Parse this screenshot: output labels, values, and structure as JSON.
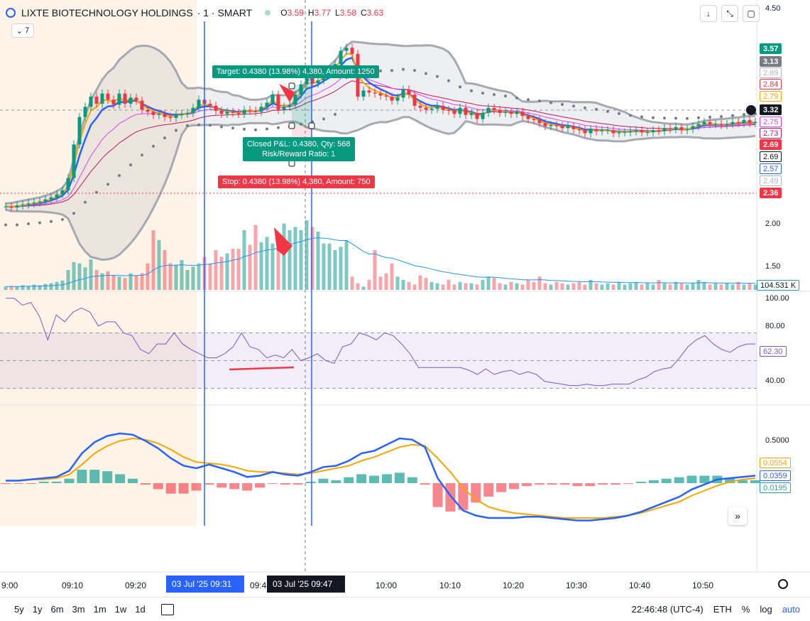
{
  "header": {
    "symbol": "LIXTE BIOTECHNOLOGY HOLDINGS",
    "interval": "· 1 · SMART",
    "o_label": "O",
    "o_value": "3.59",
    "h_label": "H",
    "h_value": "3.77",
    "l_label": "L",
    "l_value": "3.58",
    "c_label": "C",
    "c_value": "3.63",
    "indicators_count": "7"
  },
  "price_axis": {
    "labels": [
      "4.50",
      "2.00",
      "1.50"
    ],
    "tags": [
      {
        "text": "3.57",
        "bg": "#089981",
        "fg": "#ffffff"
      },
      {
        "text": "3.13",
        "bg": "#787b86",
        "fg": "#ffffff"
      },
      {
        "text": "2.89",
        "bg": "#ffffff",
        "fg": "#b2b5be"
      },
      {
        "text": "2.84",
        "bg": "#ffffff",
        "fg": "#f23645"
      },
      {
        "text": "2.79",
        "bg": "#ffffff",
        "fg": "#f7a600"
      },
      {
        "text": "3.32",
        "bg": "#131722",
        "fg": "#ffffff"
      },
      {
        "text": "2.75",
        "bg": "#ffffff",
        "fg": "#e040fb"
      },
      {
        "text": "2.73",
        "bg": "#ffffff",
        "fg": "#c2185b"
      },
      {
        "text": "2.69",
        "bg": "#f23645",
        "fg": "#ffffff"
      },
      {
        "text": "2.69",
        "bg": "#ffffff",
        "fg": "#131722"
      },
      {
        "text": "2.57",
        "bg": "#ffffff",
        "fg": "#2962ff"
      },
      {
        "text": "2.49",
        "bg": "#ffffff",
        "fg": "#b2b5be"
      },
      {
        "text": "2.36",
        "bg": "#f23645",
        "fg": "#ffffff"
      }
    ],
    "volume_tag": "104.531 K"
  },
  "rsi_axis": {
    "labels": [
      "100.00",
      "80.00",
      "40.00"
    ],
    "tag": "62.30"
  },
  "macd_axis": {
    "labels": [
      "0.5000"
    ],
    "tags": [
      "0.0554",
      "0.0359",
      "0.0195"
    ]
  },
  "time_axis": {
    "labels": [
      "9:00",
      "09:10",
      "09:20",
      "09:4",
      "10:00",
      "10:10",
      "10:20",
      "10:30",
      "10:40",
      "10:50"
    ],
    "highlight_1": "03 Jul '25   09:31",
    "highlight_2": "03 Jul '25   09:47"
  },
  "position_tool": {
    "target": "Target: 0.4380 (13.98%) 4,380, Amount: 1250",
    "closed_line1": "Closed P&L: 0.4380, Qty: 568",
    "closed_line2": "Risk/Reward Ratio: 1",
    "stop": "Stop: 0.4380 (13.98%) 4,380, Amount: 750"
  },
  "bottom_bar": {
    "ranges": [
      "5y",
      "1y",
      "6m",
      "3m",
      "1m",
      "1w",
      "1d"
    ],
    "time": "22:46:48 (UTC-4)",
    "session": "ETH",
    "percent": "%",
    "log": "log",
    "auto": "auto"
  },
  "colors": {
    "up": "#26a69a",
    "down": "#f23645",
    "accent": "#2962ff"
  },
  "chart_data": {
    "type": "candlestick",
    "closes": [
      2.05,
      2.04,
      2.06,
      2.07,
      2.08,
      2.09,
      2.1,
      2.12,
      2.14,
      2.17,
      2.21,
      2.33,
      2.66,
      2.93,
      3.03,
      3.13,
      3.06,
      3.16,
      3.1,
      3.05,
      3.16,
      3.06,
      3.12,
      3.09,
      3.0,
      2.98,
      2.95,
      2.96,
      2.93,
      2.92,
      2.95,
      2.96,
      2.97,
      3.02,
      3.1,
      3.06,
      3.04,
      2.99,
      2.96,
      2.98,
      2.97,
      2.96,
      3.0,
      2.99,
      2.98,
      3.03,
      3.07,
      3.15,
      3.0,
      3.03,
      3.05,
      3.15,
      3.25,
      3.35,
      3.26,
      3.29,
      3.36,
      3.38,
      3.45,
      3.58,
      3.61,
      3.55,
      3.13,
      3.19,
      3.17,
      3.16,
      3.14,
      3.13,
      3.09,
      3.12,
      3.2,
      3.15,
      3.04,
      3.02,
      3.0,
      3.01,
      3.04,
      3.0,
      2.99,
      2.96,
      3.02,
      2.95,
      2.97,
      2.91,
      2.97,
      3.02,
      3.0,
      2.97,
      2.98,
      2.96,
      2.98,
      2.94,
      2.91,
      2.9,
      2.87,
      2.84,
      2.85,
      2.84,
      2.82,
      2.84,
      2.81,
      2.8,
      2.77,
      2.81,
      2.79,
      2.8,
      2.8,
      2.77,
      2.78,
      2.78,
      2.79,
      2.8,
      2.78,
      2.78,
      2.8,
      2.79,
      2.82,
      2.81,
      2.83,
      2.8,
      2.81,
      2.84,
      2.86,
      2.88,
      2.86,
      2.86,
      2.85,
      2.86,
      2.88,
      2.87,
      2.9,
      2.87,
      2.88
    ],
    "volume": [
      5,
      6,
      5,
      7,
      6,
      8,
      7,
      9,
      10,
      12,
      14,
      30,
      42,
      40,
      34,
      46,
      30,
      25,
      28,
      22,
      20,
      18,
      25,
      22,
      25,
      40,
      90,
      75,
      60,
      40,
      38,
      45,
      30,
      35,
      40,
      50,
      40,
      60,
      50,
      55,
      62,
      62,
      90,
      68,
      98,
      72,
      80,
      70,
      78,
      100,
      90,
      95,
      90,
      105,
      95,
      88,
      70,
      70,
      60,
      65,
      75,
      20,
      10,
      5,
      15,
      60,
      20,
      25,
      40,
      20,
      15,
      12,
      8,
      22,
      18,
      12,
      10,
      8,
      15,
      8,
      12,
      10,
      10,
      8,
      15,
      20,
      18,
      10,
      8,
      12,
      10,
      8,
      15,
      12,
      20,
      10,
      8,
      12,
      10,
      8,
      10,
      12,
      8,
      15,
      10,
      8,
      10,
      8,
      12,
      8,
      10,
      12,
      8,
      10,
      8,
      15,
      10,
      8,
      12,
      10,
      8,
      10,
      15,
      12,
      8,
      10,
      8,
      10,
      8,
      12,
      8,
      10,
      8
    ],
    "rsi": [
      95,
      95,
      90,
      92,
      82,
      65,
      83,
      78,
      85,
      88,
      85,
      75,
      78,
      78,
      70,
      68,
      58,
      55,
      62,
      62,
      70,
      62,
      58,
      55,
      52,
      52,
      55,
      60,
      70,
      60,
      58,
      52,
      54,
      52,
      58,
      50,
      52,
      55,
      50,
      48,
      60,
      62,
      70,
      68,
      65,
      70,
      68,
      62,
      55,
      45,
      45,
      45,
      45,
      45,
      45,
      43,
      40,
      44,
      40,
      42,
      43,
      40,
      42,
      40,
      35,
      34,
      33,
      32,
      32,
      33,
      32,
      32,
      33,
      33,
      33,
      36,
      38,
      42,
      44,
      45,
      52,
      60,
      65,
      68,
      62,
      58,
      56,
      60,
      62,
      62
    ],
    "macd": [
      0.02,
      0.02,
      0.03,
      0.04,
      0.05,
      0.1,
      0.24,
      0.33,
      0.38,
      0.4,
      0.39,
      0.34,
      0.28,
      0.2,
      0.14,
      0.12,
      0.15,
      0.12,
      0.09,
      0.05,
      0.06,
      0.09,
      0.07,
      0.06,
      0.09,
      0.13,
      0.14,
      0.18,
      0.24,
      0.26,
      0.31,
      0.36,
      0.35,
      0.29,
      0.04,
      -0.1,
      -0.22,
      -0.26,
      -0.28,
      -0.28,
      -0.28,
      -0.27,
      -0.27,
      -0.28,
      -0.29,
      -0.3,
      -0.3,
      -0.29,
      -0.28,
      -0.26,
      -0.23,
      -0.19,
      -0.15,
      -0.11,
      -0.05,
      -0.01,
      0.03,
      0.04,
      0.05,
      0.06
    ],
    "signal": [
      0.02,
      0.02,
      0.03,
      0.03,
      0.04,
      0.07,
      0.15,
      0.24,
      0.3,
      0.34,
      0.36,
      0.35,
      0.32,
      0.27,
      0.21,
      0.17,
      0.16,
      0.15,
      0.13,
      0.1,
      0.09,
      0.09,
      0.08,
      0.07,
      0.08,
      0.1,
      0.12,
      0.14,
      0.18,
      0.21,
      0.25,
      0.29,
      0.31,
      0.3,
      0.2,
      0.09,
      -0.04,
      -0.13,
      -0.19,
      -0.22,
      -0.24,
      -0.25,
      -0.26,
      -0.27,
      -0.28,
      -0.28,
      -0.28,
      -0.28,
      -0.27,
      -0.26,
      -0.24,
      -0.21,
      -0.18,
      -0.15,
      -0.1,
      -0.06,
      -0.02,
      0.01,
      0.03,
      0.04
    ]
  }
}
